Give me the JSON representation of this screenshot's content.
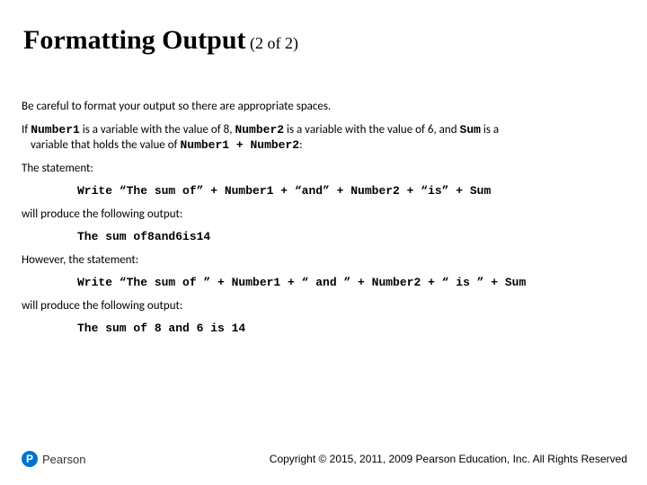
{
  "title": {
    "main": "Formatting Output",
    "sub": " (2 of 2)"
  },
  "content": {
    "intro": "Be careful to format your output so there are appropriate spaces.",
    "setup_pre1": "If ",
    "var1": "Number1",
    "setup_mid1": " is a variable with the value of 8, ",
    "var2": "Number2",
    "setup_mid2": " is a variable with the value of 6, and ",
    "var3": "Sum",
    "setup_mid3": " is a",
    "setup_line2a": "variable that holds the value of ",
    "expr": "Number1 + Number2",
    "setup_line2b": ":",
    "stmt_label1": "The statement:",
    "code1": "Write “The sum of” + Number1 + “and” + Number2 + “is” + Sum",
    "out_label1": "will produce the following output:",
    "out1": "The sum of8and6is14",
    "stmt_label2": "However, the statement:",
    "code2": "Write “The sum of ” + Number1 + “ and ” + Number2 + “ is ” + Sum",
    "out_label2": "will produce the following output:",
    "out2": "The sum of 8 and 6 is 14"
  },
  "footer": {
    "logo_letter": "P",
    "logo_name": "Pearson",
    "copyright": "Copyright © 2015, 2011, 2009 Pearson Education, Inc. All Rights Reserved"
  },
  "colors": {
    "brand": "#0073cf",
    "text": "#000000",
    "bg": "#ffffff"
  }
}
